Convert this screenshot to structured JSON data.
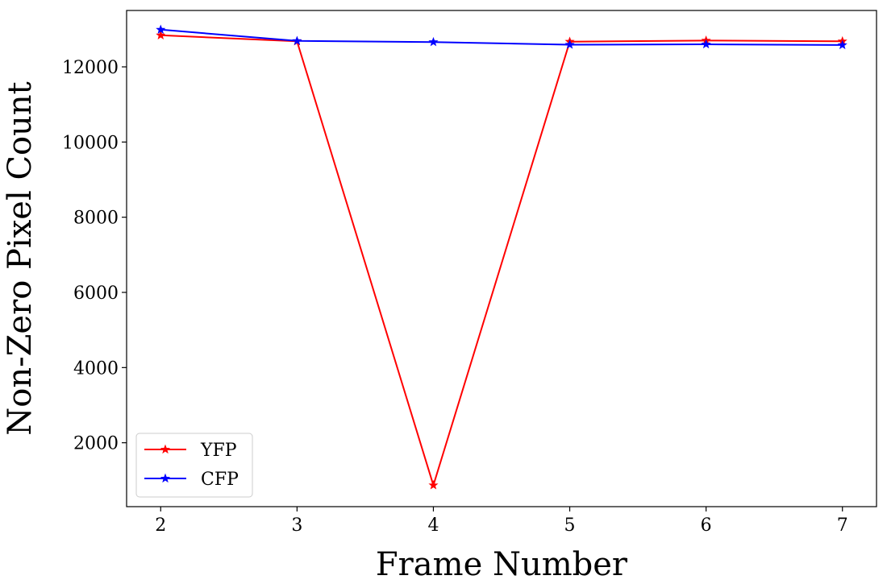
{
  "chart_data": {
    "type": "line",
    "title": "",
    "xlabel": "Frame Number",
    "ylabel": "Non-Zero Pixel Count",
    "x": [
      2,
      3,
      4,
      5,
      6,
      7
    ],
    "xlim": [
      1.75,
      7.25
    ],
    "ylim": [
      300,
      13500
    ],
    "xticks": [
      2,
      3,
      4,
      5,
      6,
      7
    ],
    "yticks": [
      2000,
      4000,
      6000,
      8000,
      10000,
      12000
    ],
    "grid": false,
    "legend_position": "lower-left",
    "series": [
      {
        "name": "YFP",
        "color": "#ff0000",
        "marker": "star",
        "values": [
          12840,
          12680,
          870,
          12670,
          12700,
          12680
        ]
      },
      {
        "name": "CFP",
        "color": "#0000ff",
        "marker": "star",
        "values": [
          12990,
          12690,
          12660,
          12590,
          12600,
          12580
        ]
      }
    ]
  }
}
